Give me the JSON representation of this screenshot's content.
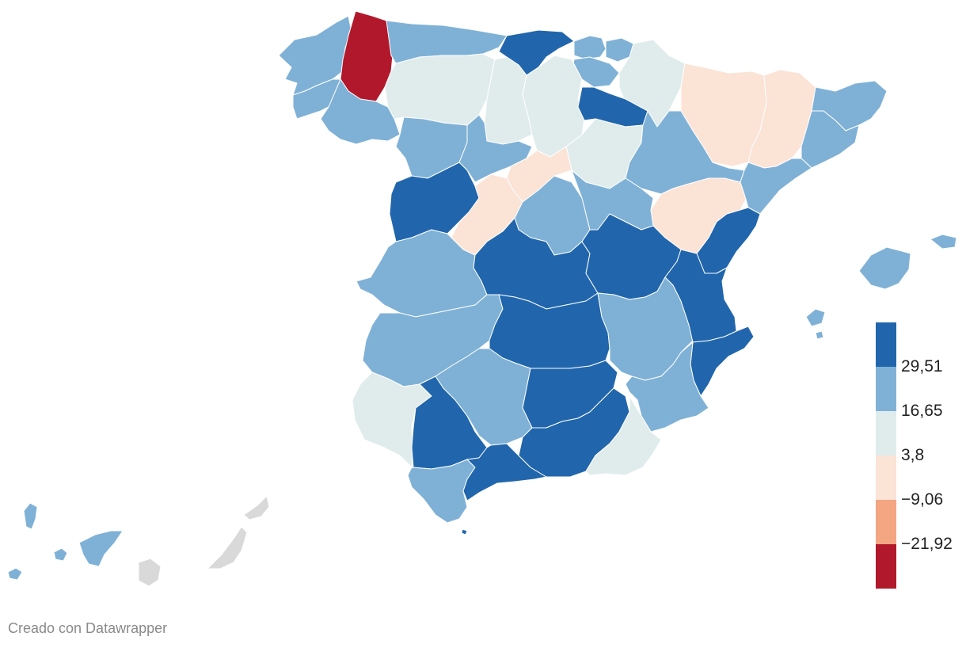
{
  "colors": {
    "c1": "#b2182b",
    "c2": "#f4a582",
    "c3": "#fbe3d6",
    "c4": "#e0ecec",
    "c5": "#7fb1d6",
    "c6": "#2166ac",
    "nodata": "#d9d9d9"
  },
  "legend": {
    "ticks": [
      "29,51",
      "16,65",
      "3,8",
      "−9,06",
      "−21,92"
    ]
  },
  "credit": "Creado con Datawrapper"
}
